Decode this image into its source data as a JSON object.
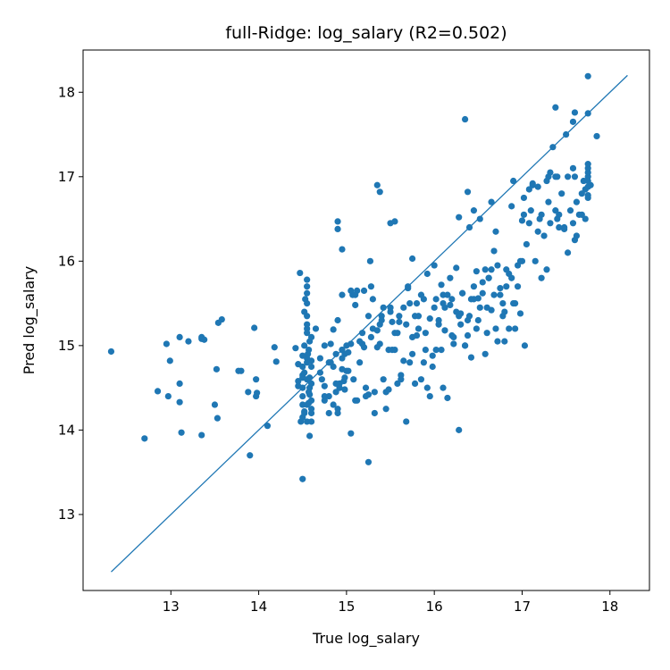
{
  "chart_data": {
    "type": "scatter",
    "title": "full-Ridge: log_salary (R2=0.502)",
    "xlabel": "True log_salary",
    "ylabel": "Pred log_salary",
    "xlim": [
      12.0,
      18.45
    ],
    "ylim": [
      12.1,
      18.5
    ],
    "xticks": [
      13,
      14,
      15,
      16,
      17,
      18
    ],
    "yticks": [
      13,
      14,
      15,
      16,
      17,
      18
    ],
    "grid": false,
    "point_color": "#1f77b4",
    "line_color": "#1f77b4",
    "reference_line": {
      "x": [
        12.32,
        18.2
      ],
      "y": [
        12.32,
        18.2
      ]
    },
    "series": [
      {
        "x": [
          12.32,
          12.7,
          12.85,
          12.95,
          12.97,
          12.99,
          13.1,
          13.1,
          13.1,
          13.12,
          13.2,
          13.35,
          13.35,
          13.35,
          13.38,
          13.5,
          13.52,
          13.53,
          13.54,
          13.58,
          13.77,
          13.8,
          13.88,
          13.9,
          13.95,
          13.97,
          13.97,
          13.98,
          14.1,
          14.18,
          14.2,
          14.42,
          14.45,
          14.45,
          14.47,
          14.5,
          14.52,
          14.55,
          14.55,
          14.58,
          14.6,
          14.48,
          14.5,
          14.52,
          14.55,
          14.56,
          14.58,
          14.6,
          14.5,
          14.52,
          14.55,
          14.57,
          14.6,
          14.5,
          14.55,
          14.58,
          14.6,
          14.5,
          14.52,
          14.55,
          14.57,
          14.6,
          14.5,
          14.55,
          14.58,
          14.45,
          14.5,
          14.53,
          14.57,
          14.6,
          14.52,
          14.55,
          14.58,
          14.5,
          14.55,
          14.55,
          14.55,
          14.6,
          14.6,
          14.55,
          14.5,
          14.55,
          14.65,
          14.72,
          14.75,
          14.8,
          14.82,
          14.85,
          14.88,
          14.9,
          14.92,
          14.95,
          14.97,
          14.98,
          14.8,
          14.85,
          14.9,
          14.95,
          14.7,
          14.75,
          14.8,
          14.9,
          14.95,
          14.7,
          14.75,
          14.85,
          14.88,
          14.92,
          14.95,
          14.98,
          14.9,
          14.95,
          14.88,
          14.75,
          14.82,
          14.9,
          14.95,
          14.98,
          15.0,
          15.02,
          15.05,
          15.07,
          15.1,
          15.12,
          15.15,
          15.18,
          15.2,
          15.22,
          15.25,
          15.28,
          15.3,
          15.32,
          15.35,
          15.38,
          15.4,
          15.42,
          15.45,
          15.48,
          15.5,
          15.52,
          15.55,
          15.58,
          15.6,
          15.62,
          15.65,
          15.68,
          15.7,
          15.72,
          15.75,
          15.78,
          15.8,
          15.82,
          15.85,
          15.88,
          15.9,
          15.92,
          15.95,
          15.98,
          15.0,
          15.05,
          15.1,
          15.15,
          15.2,
          15.25,
          15.3,
          15.35,
          15.4,
          15.45,
          15.5,
          15.55,
          15.6,
          15.65,
          15.7,
          15.75,
          15.8,
          15.85,
          15.9,
          15.95,
          15.02,
          15.08,
          15.12,
          15.18,
          15.22,
          15.28,
          15.32,
          15.38,
          15.42,
          15.48,
          15.52,
          15.58,
          15.62,
          15.68,
          15.72,
          15.78,
          15.82,
          15.88,
          15.92,
          15.98,
          15.35,
          15.38,
          15.5,
          15.55,
          15.75,
          15.25,
          15.1,
          15.05,
          15.27,
          16.0,
          16.02,
          16.05,
          16.08,
          16.1,
          16.12,
          16.15,
          16.18,
          16.2,
          16.22,
          16.25,
          16.28,
          16.3,
          16.32,
          16.35,
          16.38,
          16.4,
          16.42,
          16.45,
          16.48,
          16.5,
          16.52,
          16.55,
          16.58,
          16.6,
          16.62,
          16.65,
          16.68,
          16.7,
          16.72,
          16.75,
          16.78,
          16.8,
          16.82,
          16.85,
          16.88,
          16.9,
          16.92,
          16.95,
          16.98,
          16.0,
          16.05,
          16.1,
          16.15,
          16.2,
          16.25,
          16.3,
          16.35,
          16.4,
          16.45,
          16.5,
          16.55,
          16.6,
          16.65,
          16.7,
          16.75,
          16.8,
          16.85,
          16.9,
          16.95,
          16.02,
          16.08,
          16.12,
          16.18,
          16.22,
          16.28,
          16.32,
          16.38,
          16.42,
          16.48,
          16.52,
          16.58,
          16.62,
          16.68,
          16.72,
          16.78,
          16.82,
          16.88,
          16.92,
          16.98,
          16.35,
          16.38,
          16.65,
          16.45,
          16.28,
          16.1,
          17.0,
          17.02,
          17.05,
          17.08,
          17.1,
          17.12,
          17.15,
          17.18,
          17.2,
          17.22,
          17.25,
          17.28,
          17.3,
          17.32,
          17.35,
          17.38,
          17.4,
          17.42,
          17.45,
          17.48,
          17.5,
          17.52,
          17.55,
          17.58,
          17.6,
          17.62,
          17.65,
          17.68,
          17.7,
          17.72,
          17.75,
          17.78,
          17.02,
          17.08,
          17.12,
          17.18,
          17.22,
          17.28,
          17.32,
          17.38,
          17.42,
          17.48,
          17.52,
          17.58,
          17.62,
          17.68,
          17.72,
          17.75,
          17.75,
          17.75,
          17.75,
          17.75,
          17.75,
          17.75,
          17.75,
          17.38,
          17.4,
          17.58,
          17.6,
          17.75,
          17.85,
          17.0,
          17.03,
          17.3,
          17.6
        ],
        "y": [
          14.93,
          13.9,
          14.46,
          15.02,
          14.4,
          14.82,
          15.1,
          14.55,
          14.33,
          13.97,
          15.05,
          15.1,
          15.08,
          13.94,
          15.07,
          14.3,
          14.72,
          14.14,
          15.27,
          15.31,
          14.7,
          14.7,
          14.45,
          13.7,
          15.21,
          14.4,
          14.6,
          14.44,
          14.05,
          14.98,
          14.81,
          14.97,
          14.78,
          14.52,
          15.86,
          14.75,
          14.2,
          14.6,
          15.2,
          14.5,
          14.35,
          14.1,
          14.4,
          15.0,
          15.7,
          14.9,
          15.05,
          14.25,
          14.15,
          14.68,
          15.35,
          14.95,
          14.55,
          14.65,
          15.5,
          14.62,
          14.2,
          14.3,
          15.4,
          14.85,
          14.45,
          14.75,
          14.5,
          15.15,
          13.93,
          14.58,
          14.88,
          15.55,
          14.32,
          15.1,
          14.22,
          15.62,
          14.42,
          14.62,
          15.78,
          14.1,
          14.3,
          14.82,
          14.1,
          15.25,
          13.42,
          14.8,
          15.2,
          14.6,
          14.35,
          14.8,
          15.02,
          15.19,
          14.45,
          15.3,
          14.55,
          14.72,
          14.58,
          14.9,
          14.4,
          14.75,
          14.2,
          15.6,
          14.68,
          14.52,
          14.2,
          16.47,
          14.95,
          14.85,
          14.4,
          14.3,
          14.55,
          14.5,
          14.95,
          14.62,
          14.25,
          16.14,
          14.9,
          15.0,
          14.8,
          16.38,
          14.85,
          14.48,
          15.0,
          14.7,
          13.96,
          15.6,
          14.35,
          15.65,
          15.05,
          15.02,
          14.98,
          14.4,
          15.35,
          15.1,
          15.55,
          14.45,
          15.18,
          15.02,
          15.35,
          15.45,
          14.45,
          14.95,
          15.4,
          15.28,
          15.15,
          14.55,
          15.35,
          14.6,
          15.45,
          15.25,
          15.7,
          14.8,
          15.1,
          15.35,
          15.5,
          15.2,
          14.6,
          15.55,
          14.95,
          15.85,
          14.4,
          14.75,
          14.7,
          15.02,
          15.48,
          14.8,
          15.65,
          14.42,
          15.2,
          14.98,
          15.3,
          14.25,
          15.45,
          14.95,
          15.28,
          14.82,
          15.68,
          14.9,
          15.12,
          15.6,
          15.15,
          15.32,
          14.92,
          14.6,
          14.35,
          15.15,
          14.5,
          15.7,
          14.2,
          15.25,
          14.6,
          14.48,
          14.95,
          15.15,
          14.65,
          14.1,
          15.5,
          14.55,
          15.35,
          14.8,
          14.5,
          14.88,
          16.9,
          16.82,
          16.45,
          16.47,
          16.03,
          13.62,
          15.6,
          15.65,
          16.0,
          15.95,
          15.55,
          15.3,
          14.95,
          15.6,
          15.45,
          14.38,
          15.8,
          15.55,
          15.1,
          15.4,
          16.52,
          15.25,
          15.62,
          15.0,
          15.3,
          15.35,
          14.86,
          15.7,
          15.2,
          15.56,
          15.45,
          15.62,
          15.9,
          15.15,
          15.8,
          15.42,
          15.6,
          16.35,
          15.95,
          15.68,
          15.35,
          15.05,
          15.9,
          15.2,
          15.8,
          16.95,
          15.5,
          15.7,
          15.38,
          15.45,
          15.25,
          15.5,
          15.6,
          15.12,
          15.92,
          15.38,
          15.0,
          16.4,
          15.55,
          15.3,
          15.75,
          15.45,
          15.9,
          15.2,
          15.6,
          15.4,
          15.85,
          15.5,
          15.95,
          14.95,
          15.72,
          15.18,
          15.48,
          15.02,
          15.35,
          15.62,
          15.12,
          15.55,
          15.88,
          16.5,
          14.9,
          15.8,
          16.12,
          15.05,
          15.5,
          15.7,
          16.65,
          15.2,
          16.0,
          17.68,
          16.82,
          16.7,
          16.6,
          14.0,
          14.5,
          16.0,
          16.55,
          16.2,
          16.45,
          16.6,
          16.9,
          16.0,
          16.35,
          16.5,
          15.8,
          16.3,
          15.9,
          16.7,
          16.45,
          17.35,
          16.6,
          16.5,
          16.55,
          16.8,
          16.4,
          17.5,
          16.1,
          16.6,
          16.45,
          16.25,
          16.7,
          16.55,
          16.8,
          16.95,
          16.5,
          16.75,
          16.9,
          16.75,
          16.85,
          16.92,
          16.88,
          16.55,
          16.95,
          17.05,
          17.0,
          16.4,
          16.38,
          17.0,
          17.1,
          16.3,
          16.55,
          16.85,
          17.0,
          17.05,
          17.1,
          17.15,
          16.78,
          17.75,
          16.88,
          16.95,
          17.82,
          17.0,
          17.65,
          17.0,
          18.19,
          17.48,
          16.48,
          15.0,
          17.0,
          17.76
        ]
      }
    ]
  }
}
